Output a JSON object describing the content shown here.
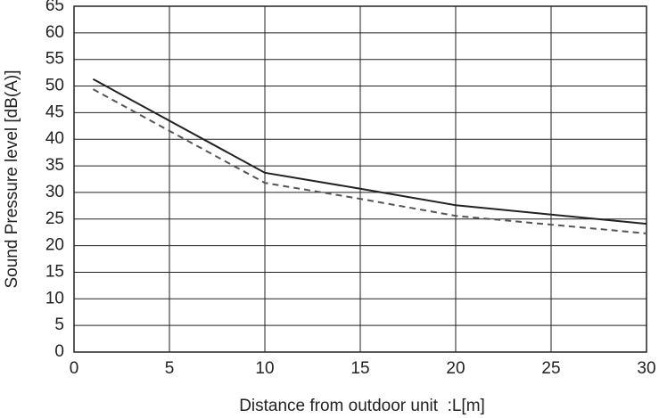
{
  "chart_data": {
    "type": "line",
    "xlabel": "Distance from outdoor unit  :L[m]",
    "ylabel": "Sound Pressure level [dB(A)]",
    "series": [
      {
        "color": "#222222",
        "dashed": false,
        "x": [
          1,
          10,
          15,
          20,
          30
        ],
        "values": [
          51.3,
          33.7,
          30.7,
          27.6,
          24.1
        ]
      },
      {
        "color": "#555555",
        "dashed": true,
        "x": [
          1,
          10,
          15,
          20,
          30
        ],
        "values": [
          49.4,
          31.8,
          28.8,
          25.6,
          22.3
        ]
      }
    ],
    "xlim": [
      0,
      30
    ],
    "xticks": [
      0,
      5,
      10,
      15,
      20,
      25,
      30
    ],
    "ylim": [
      0,
      65
    ],
    "yticks": [
      0,
      5,
      10,
      15,
      20,
      25,
      30,
      35,
      40,
      45,
      50,
      55,
      60,
      65
    ],
    "grid": true
  }
}
